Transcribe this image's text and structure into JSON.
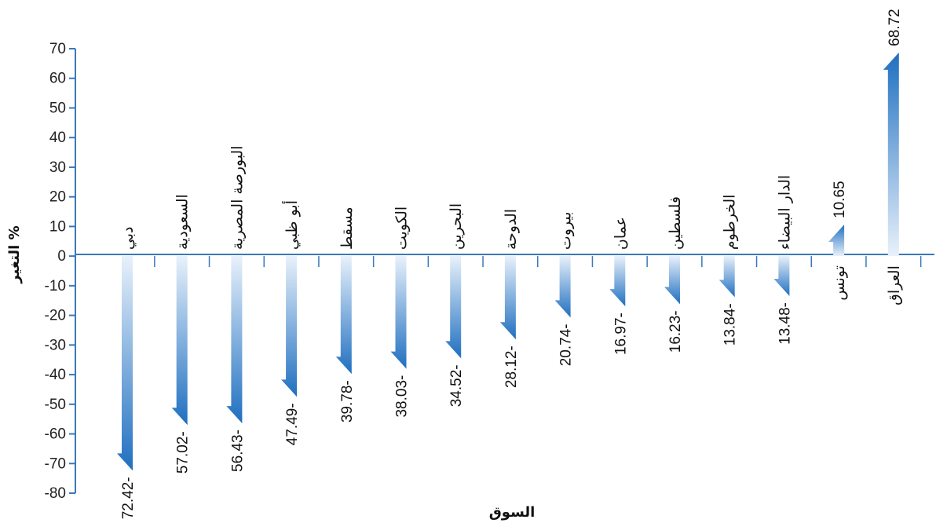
{
  "chart_data": {
    "type": "bar",
    "xlabel": "السوق",
    "ylabel": "التغير %",
    "ylim": [
      -80,
      70
    ],
    "yticks": [
      70,
      60,
      50,
      40,
      30,
      20,
      10,
      0,
      -10,
      -20,
      -30,
      -40,
      -50,
      -60,
      -70,
      -80
    ],
    "categories": [
      "دبي",
      "السعودية",
      "البورصة المصرية",
      "أبو ظبي",
      "مسقط",
      "الكويت",
      "البحرين",
      "الدوحة",
      "بيروت",
      "عمان",
      "فلسطين",
      "الخرطوم",
      "الدار البيضاء",
      "تونس",
      "العراق"
    ],
    "values": [
      -72.42,
      -57.02,
      -56.43,
      -47.49,
      -39.78,
      -38.03,
      -34.52,
      -28.12,
      -20.74,
      -16.97,
      -16.23,
      -13.84,
      -13.48,
      10.65,
      68.72
    ],
    "value_labels": [
      "72.42-",
      "57.02-",
      "56.43-",
      "47.49-",
      "39.78-",
      "38.03-",
      "34.52-",
      "28.12-",
      "20.74-",
      "16.97-",
      "16.23-",
      "13.84-",
      "13.48-",
      "10.65",
      "68.72"
    ],
    "colors": {
      "bar_dark": "#1f6fc0",
      "bar_light": "#e8f1fb",
      "axis": "#3a78b8"
    },
    "grid": false,
    "legend": "none"
  }
}
